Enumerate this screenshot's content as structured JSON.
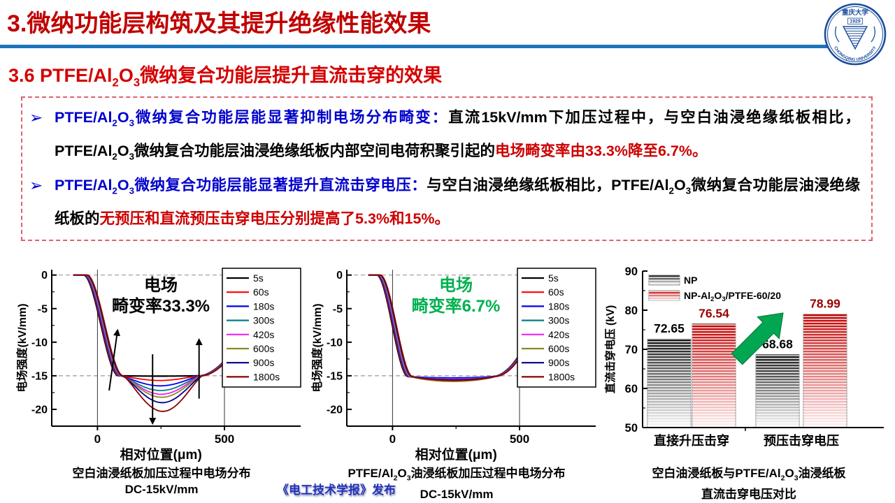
{
  "slide": {
    "title": "3.微纳功能层构筑及其提升绝缘性能效果",
    "subtitle": "3.6 PTFE/Al[2]O[3]微纳复合功能层提升直流击穿的效果"
  },
  "logo": {
    "top_text": "重庆大学",
    "year": "1929",
    "ring_text": "CHONGQING UNIVERSITY",
    "color": "#1D4E9E"
  },
  "bullets": [
    {
      "marker": "➢",
      "segments": [
        {
          "style": "blue",
          "text": "PTFE/Al[2]O[3]微纳复合功能层能显著抑制电场分布畸变："
        },
        {
          "style": "black",
          "text": "直流15kV/mm下加压过程中，与空白油浸绝缘纸板相比，PTFE/Al[2]O[3]微纳复合功能层油浸绝缘纸板内部空间电荷积聚引起的"
        },
        {
          "style": "red",
          "text": "电场畸变率由33.3%降至6.7%。"
        }
      ]
    },
    {
      "marker": "➢",
      "segments": [
        {
          "style": "blue",
          "text": "PTFE/Al[2]O[3]微纳复合功能层能显著提升直流击穿电压："
        },
        {
          "style": "black",
          "text": "与空白油浸绝缘纸板相比，PTFE/Al[2]O[3]微纳复合功能层油浸绝缘纸板的"
        },
        {
          "style": "red",
          "text": "无预压和直流预压击穿电压分别提高了5.3%和15%。"
        }
      ]
    }
  ],
  "chart_data": [
    {
      "type": "line",
      "id": "field-blank",
      "annotation": {
        "line1": "电场",
        "line2": "畸变率33.3%",
        "color": "#000000"
      },
      "xlabel": "相对位置(μm)",
      "ylabel": "电场强度(kV/mm)",
      "xlim": [
        -180,
        800
      ],
      "ylim": [
        -22.5,
        0.8
      ],
      "xticks": [
        0,
        500
      ],
      "yticks": [
        0,
        -5,
        -10,
        -15,
        -20
      ],
      "dashed_y": [
        0,
        -15
      ],
      "vlines": [
        0,
        500
      ],
      "plateau": -15,
      "shape": {
        "flat_to": -48,
        "desc_end": 92,
        "plateau_end": 408,
        "rise_end": 650,
        "rise_y": -4.5,
        "rise_pow": 1.7,
        "dip_pow": 1.25
      },
      "series": [
        {
          "name": "5s",
          "color": "#000000",
          "min": -15.05
        },
        {
          "name": "60s",
          "color": "#FF0000",
          "min": -15.7
        },
        {
          "name": "180s",
          "color": "#0000EE",
          "min": -16.5
        },
        {
          "name": "300s",
          "color": "#007F7F",
          "min": -17.2
        },
        {
          "name": "420s",
          "color": "#EE22EE",
          "min": -17.75
        },
        {
          "name": "600s",
          "color": "#8A8A22",
          "min": -18.2
        },
        {
          "name": "900s",
          "color": "#00008B",
          "min": -19.0
        },
        {
          "name": "1800s",
          "color": "#8B0000",
          "min": -20.3
        }
      ],
      "arrows": [
        {
          "x1": 46,
          "y1": -17.2,
          "x2": 80,
          "y2": -8.0
        },
        {
          "x1": 217,
          "y1": -11.8,
          "x2": 217,
          "y2": -22.3
        },
        {
          "x1": 400,
          "y1": -18.4,
          "x2": 400,
          "y2": -9.4
        }
      ]
    },
    {
      "type": "line",
      "id": "field-ptfe",
      "annotation": {
        "line1": "电场",
        "line2": "畸变率6.7%",
        "color": "#00B050"
      },
      "xlabel": "相对位置(μm)",
      "ylabel": "电场强度(kV/mm)",
      "xlim": [
        -180,
        800
      ],
      "ylim": [
        -22.5,
        0.8
      ],
      "xticks": [
        0,
        500
      ],
      "yticks": [
        0,
        -5,
        -10,
        -15,
        -20
      ],
      "dashed_y": [
        0,
        -15
      ],
      "vlines": [
        0,
        500
      ],
      "plateau": -15.1,
      "shape": {
        "flat_to": -55,
        "desc_end": 70,
        "plateau_end": 400,
        "rise_end": 620,
        "rise_y": -1.8,
        "rise_pow": 1.9,
        "dip_pow": 0.7
      },
      "series": [
        {
          "name": "5s",
          "color": "#000000",
          "min": -15.35
        },
        {
          "name": "60s",
          "color": "#FF0000",
          "min": -15.55
        },
        {
          "name": "180s",
          "color": "#0000EE",
          "min": -15.3
        },
        {
          "name": "300s",
          "color": "#007F7F",
          "min": -15.45
        },
        {
          "name": "420s",
          "color": "#EE22EE",
          "min": -15.5
        },
        {
          "name": "600s",
          "color": "#8A8A22",
          "min": -15.85
        },
        {
          "name": "900s",
          "color": "#00008B",
          "min": -15.6
        },
        {
          "name": "1800s",
          "color": "#8B0000",
          "min": -15.7
        }
      ],
      "arrows": []
    },
    {
      "type": "bar",
      "id": "breakdown-voltage",
      "ylabel": "直流击穿电压 (kV)",
      "ylim": [
        50,
        90
      ],
      "yticks": [
        50,
        60,
        70,
        80,
        90
      ],
      "categories": [
        "直接升压击穿",
        "预压击穿电压"
      ],
      "series": [
        {
          "name": "NP",
          "top_color": "#141414",
          "bottom_color": "#FCFCFC",
          "label_color": "#000000",
          "values": [
            72.65,
            68.68
          ]
        },
        {
          "name": "NP-Al[2]O[3]/PTFE-60/20",
          "top_color": "#C40000",
          "bottom_color": "#FFF2F2",
          "label_color": "#990000",
          "values": [
            76.54,
            78.99
          ]
        }
      ],
      "arrow_color": "#00A651"
    }
  ],
  "captions": [
    {
      "line1": "空白油浸纸板加压过程中电场分布",
      "line2": "DC-15kV/mm"
    },
    {
      "line1": "PTFE/Al[2]O[3]油浸纸板加压过程中电场分布",
      "line2": "DC-15kV/mm"
    },
    {
      "line1": "空白油浸纸板与PTFE/Al[2]O[3]油浸纸板",
      "line2": "直流击穿电压对比"
    }
  ],
  "watermark": "《电工技术学报》发布"
}
